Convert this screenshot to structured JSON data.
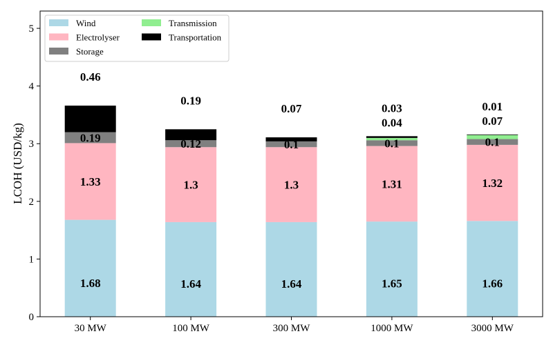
{
  "chart_data": {
    "type": "bar",
    "stacked": true,
    "categories": [
      "30 MW",
      "100 MW",
      "300 MW",
      "1000 MW",
      "3000 MW"
    ],
    "series": [
      {
        "name": "Wind",
        "color": "#add8e6",
        "values": [
          1.68,
          1.64,
          1.64,
          1.65,
          1.66
        ]
      },
      {
        "name": "Electrolyser",
        "color": "#ffb6c1",
        "values": [
          1.33,
          1.3,
          1.3,
          1.31,
          1.32
        ]
      },
      {
        "name": "Storage",
        "color": "#808080",
        "values": [
          0.19,
          0.12,
          0.1,
          0.1,
          0.1
        ]
      },
      {
        "name": "Transmission",
        "color": "#90ee90",
        "values": [
          0,
          0,
          0,
          0.04,
          0.07
        ]
      },
      {
        "name": "Transportation",
        "color": "#000000",
        "values": [
          0.46,
          0.19,
          0.07,
          0.03,
          0.01
        ]
      }
    ],
    "data_labels": [
      [
        "1.68",
        "1.33",
        "0.19",
        null,
        "0.46"
      ],
      [
        "1.64",
        "1.3",
        "0.12",
        null,
        "0.19"
      ],
      [
        "1.64",
        "1.3",
        "0.1",
        null,
        "0.07"
      ],
      [
        "1.65",
        "1.31",
        "0.1",
        "0.04",
        "0.03"
      ],
      [
        "1.66",
        "1.32",
        "0.1",
        "0.07",
        "0.01"
      ]
    ],
    "ylabel": "LCOH (USD/kg)",
    "xlabel": "",
    "title": "",
    "ylim": [
      0,
      5.3
    ],
    "yticks": [
      0,
      1,
      2,
      3,
      4,
      5
    ],
    "legend": {
      "position": "top-left",
      "columns": 2
    },
    "grid": false
  }
}
